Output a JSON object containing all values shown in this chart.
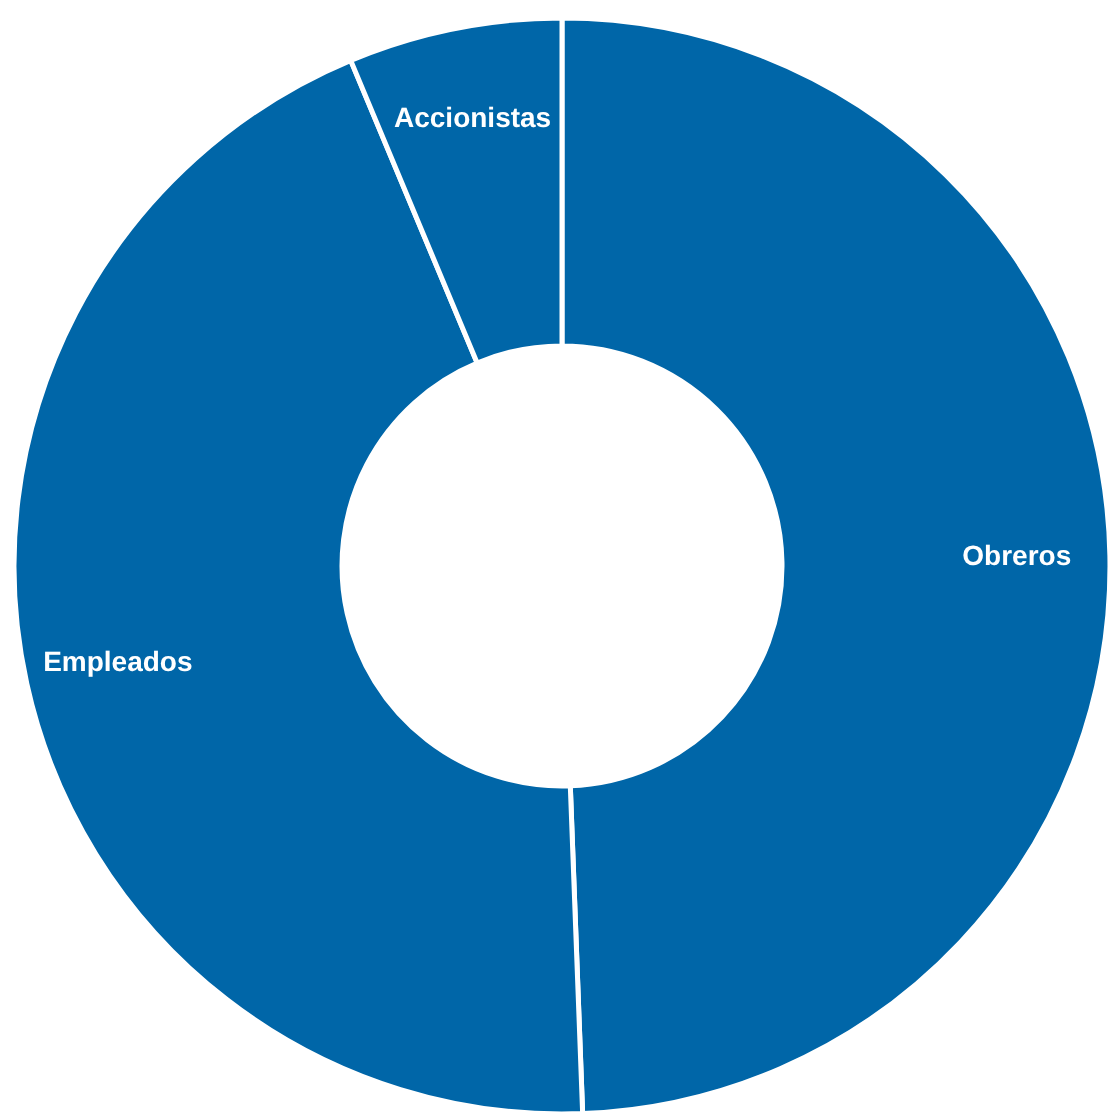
{
  "chart_data": {
    "type": "donut",
    "categories": [
      "Obreros",
      "Empleados",
      "Accionistas"
    ],
    "values": [
      49.4,
      44.3,
      6.3
    ],
    "colors": [
      "#0066a8",
      "#0066a8",
      "#0066a8"
    ]
  }
}
